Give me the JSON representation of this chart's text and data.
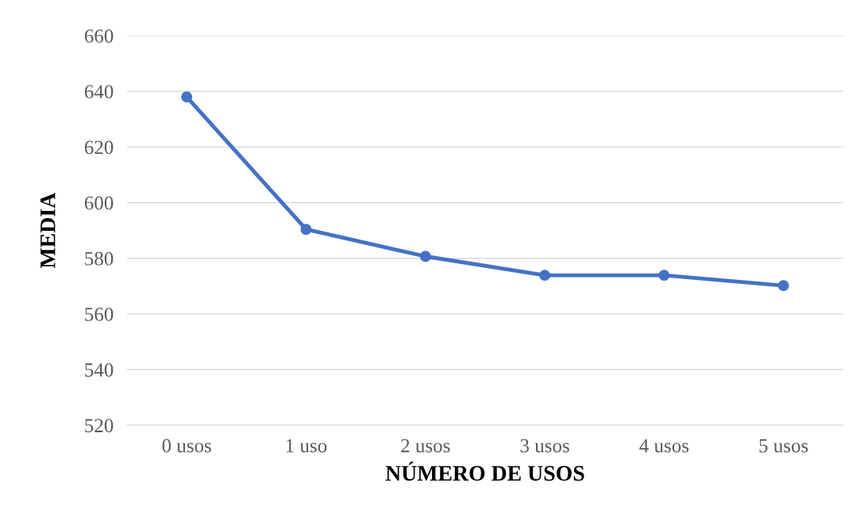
{
  "chart_data": {
    "type": "line",
    "xlabel": "NÚMERO DE USOS",
    "ylabel": "MEDIA",
    "categories": [
      "0 usos",
      "1 uso",
      "2 usos",
      "3 usos",
      "4 usos",
      "5 usos"
    ],
    "series": [
      {
        "color": "#4472c4",
        "values": [
          638,
          590.4,
          580.7,
          573.9,
          573.9,
          570.2
        ]
      }
    ],
    "ylim": [
      520,
      660
    ],
    "yticks": [
      520,
      540,
      560,
      580,
      600,
      620,
      640,
      660
    ],
    "grid": "y",
    "marker": "circle",
    "line_style": "solid"
  }
}
